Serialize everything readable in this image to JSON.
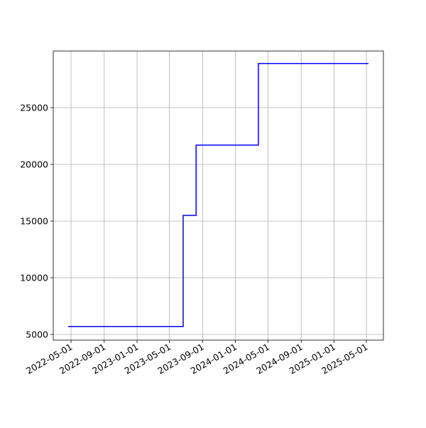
{
  "chart_data": {
    "type": "line",
    "drawstyle": "steps-post",
    "x": [
      "2022-04-20",
      "2023-06-21",
      "2023-08-08",
      "2024-03-26",
      "2025-05-09"
    ],
    "series": [
      {
        "color": "#0000ff",
        "values": [
          5700,
          15500,
          21700,
          28900,
          28900
        ]
      }
    ],
    "xlim": [
      "2022-02-24",
      "2025-07-03"
    ],
    "xticks": [
      "2022-05-01",
      "2022-09-01",
      "2023-01-01",
      "2023-05-01",
      "2023-09-01",
      "2024-01-01",
      "2024-05-01",
      "2024-09-01",
      "2025-01-01",
      "2025-05-01"
    ],
    "ylim": [
      4500,
      30000
    ],
    "yticks": [
      5000,
      10000,
      15000,
      20000,
      25000
    ],
    "grid": true
  }
}
